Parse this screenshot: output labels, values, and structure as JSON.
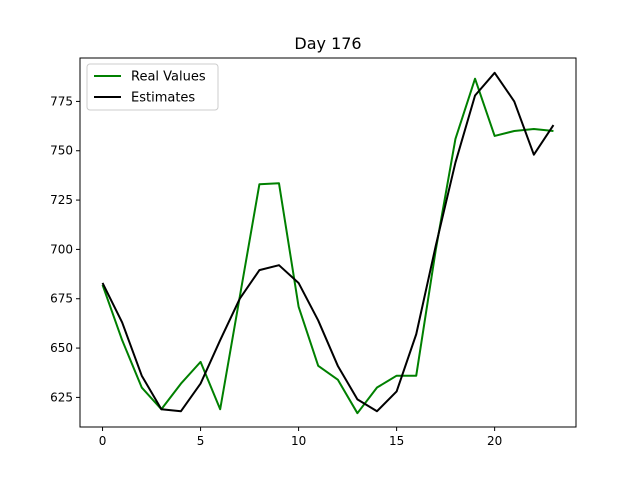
{
  "chart_data": {
    "type": "line",
    "title": "Day 176",
    "xlabel": "",
    "ylabel": "",
    "xlim": [
      -1.15,
      24.15
    ],
    "ylim": [
      610,
      797
    ],
    "x_ticks": [
      0,
      5,
      10,
      15,
      20
    ],
    "y_ticks": [
      625,
      650,
      675,
      700,
      725,
      750,
      775
    ],
    "grid": false,
    "legend_position": "top-left",
    "x": [
      0,
      1,
      2,
      3,
      4,
      5,
      6,
      7,
      8,
      9,
      10,
      11,
      12,
      13,
      14,
      15,
      16,
      17,
      18,
      19,
      20,
      21,
      22,
      23
    ],
    "series": [
      {
        "name": "Real Values",
        "color": "#008000",
        "values": [
          682,
          654,
          630,
          619,
          632,
          643,
          619,
          676,
          733,
          733.5,
          671,
          641,
          634,
          617,
          630,
          636,
          636,
          700,
          756,
          786.5,
          757.5,
          760,
          761,
          760
        ]
      },
      {
        "name": "Estimates",
        "color": "#000000",
        "values": [
          683,
          663,
          636,
          619,
          618,
          632,
          654,
          675,
          689.5,
          692,
          683,
          664,
          641,
          624,
          618,
          628,
          657,
          702,
          744,
          778,
          789.5,
          775,
          748,
          763
        ]
      }
    ]
  }
}
